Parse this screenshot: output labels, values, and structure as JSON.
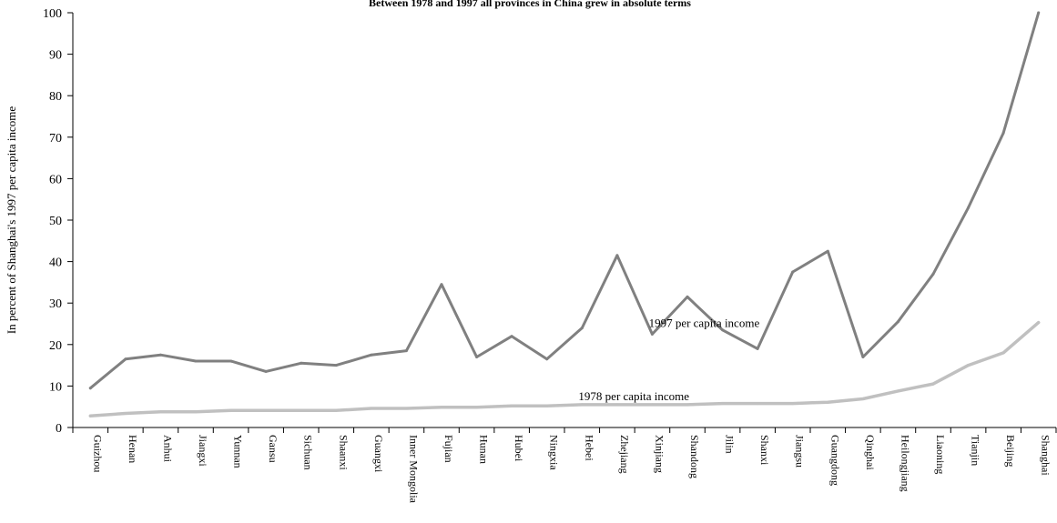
{
  "chart_data": {
    "type": "line",
    "title": "Between 1978 and 1997 all provinces in China grew in absolute terms",
    "ylabel": "In percent of Shanghai's 1997 per capita income",
    "xlabel": "",
    "ylim": [
      0,
      100
    ],
    "yticks": [
      0,
      10,
      20,
      30,
      40,
      50,
      60,
      70,
      80,
      90,
      100
    ],
    "grid": false,
    "categories": [
      "Guizhou",
      "Henan",
      "Anhui",
      "Jiangxi",
      "Yunnan",
      "Gansu",
      "Sichuan",
      "Shaanxi",
      "Guangxi",
      "Inner Mongolia",
      "Fujian",
      "Hunan",
      "Hubei",
      "Ningxia",
      "Hebei",
      "Zhejiang",
      "Xinjiang",
      "Shandong",
      "Jilin",
      "Shanxi",
      "Jiangsu",
      "Guangdong",
      "Qinghai",
      "Heilongjiang",
      "Liaoning",
      "Tianjin",
      "Beijing",
      "Shanghai"
    ],
    "series": [
      {
        "name": "1997 per capita income",
        "color": "#808080",
        "values": [
          9.5,
          16.5,
          17.5,
          16,
          16,
          13.5,
          15.5,
          15,
          17.5,
          18.5,
          34.5,
          17,
          22,
          16.5,
          24,
          41.5,
          22.5,
          31.5,
          23.5,
          19,
          37.5,
          42.5,
          17,
          25.5,
          37,
          53,
          71,
          100
        ]
      },
      {
        "name": "1978 per capita income",
        "color": "#c0c0c0",
        "values": [
          2.8,
          3.4,
          3.8,
          3.8,
          4.1,
          4.1,
          4.1,
          4.1,
          4.6,
          4.6,
          4.9,
          4.9,
          5.2,
          5.2,
          5.5,
          5.5,
          5.5,
          5.5,
          5.8,
          5.8,
          5.8,
          6.1,
          6.9,
          8.8,
          10.5,
          15,
          18,
          25.3
        ]
      }
    ]
  }
}
